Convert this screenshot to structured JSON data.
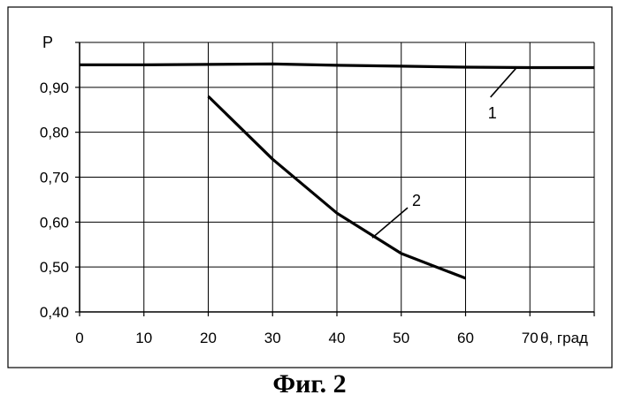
{
  "chart_data": {
    "type": "line",
    "xlabel": "θ, град",
    "ylabel": "P",
    "xlim": [
      0,
      80
    ],
    "ylim": [
      0.4,
      1.0
    ],
    "x_ticks": [
      "0",
      "10",
      "20",
      "30",
      "40",
      "50",
      "60",
      "70"
    ],
    "y_ticks": [
      "0,40",
      "0,50",
      "0,60",
      "0,70",
      "0,80",
      "0,90"
    ],
    "grid": true,
    "legend": "none",
    "series": [
      {
        "name": "1",
        "x": [
          0,
          10,
          20,
          30,
          40,
          50,
          60,
          70,
          80
        ],
        "y": [
          0.95,
          0.95,
          0.951,
          0.952,
          0.949,
          0.947,
          0.945,
          0.944,
          0.944
        ]
      },
      {
        "name": "2",
        "x": [
          20,
          30,
          40,
          50,
          60
        ],
        "y": [
          0.88,
          0.74,
          0.62,
          0.53,
          0.475
        ]
      }
    ]
  },
  "caption": "Фиг. 2"
}
